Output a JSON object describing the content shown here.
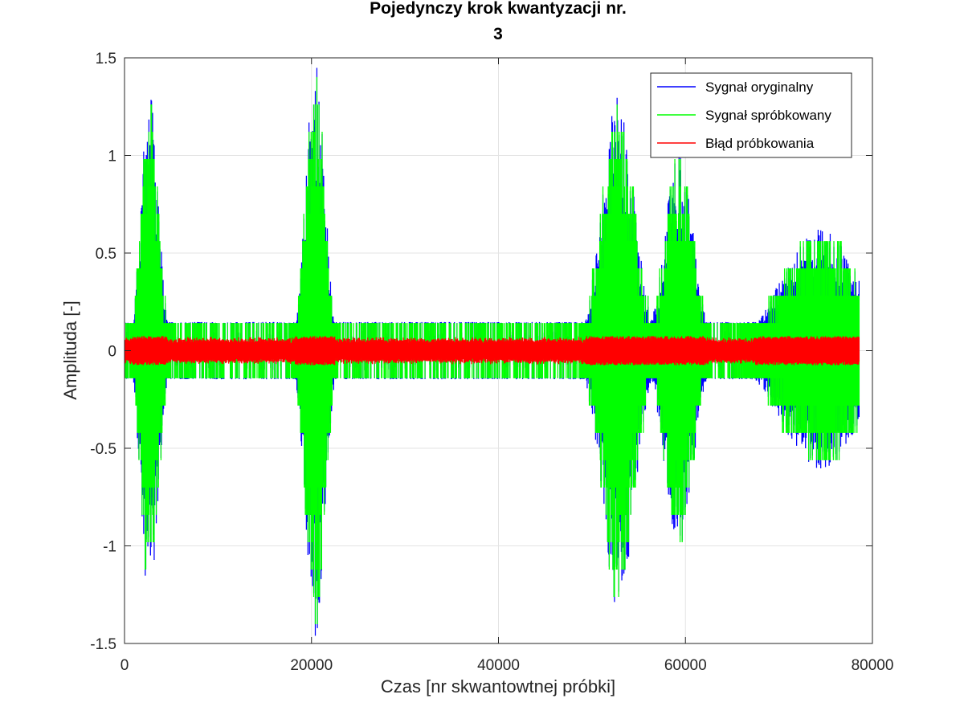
{
  "chart_data": {
    "type": "line",
    "title_lines": [
      "Pojedynczy krok kwantyzacji nr.",
      "3"
    ],
    "xlabel": "Czas [nr skwantowtnej próbki]",
    "ylabel": "Amplituda [-]",
    "xlim": [
      0,
      80000
    ],
    "ylim": [
      -1.5,
      1.5
    ],
    "x_ticks": [
      0,
      20000,
      40000,
      60000,
      80000
    ],
    "x_tick_labels": [
      "0",
      "20000",
      "40000",
      "60000",
      "80000"
    ],
    "y_ticks": [
      -1.5,
      -1,
      -0.5,
      0,
      0.5,
      1,
      1.5
    ],
    "y_tick_labels": [
      "-1.5",
      "-1",
      "-0.5",
      "0",
      "0.5",
      "1",
      "1.5"
    ],
    "grid": true,
    "legend_position": "top-right",
    "n_samples": 78600,
    "quantization_step": 0.14,
    "series": [
      {
        "name": "Sygnał oryginalny",
        "color": "#0000ff",
        "kind": "original"
      },
      {
        "name": "Sygnał spróbkowany",
        "color": "#00ff00",
        "kind": "quantized"
      },
      {
        "name": "Błąd próbkowania",
        "color": "#ff0000",
        "kind": "error"
      }
    ],
    "bursts": [
      {
        "center": 2700,
        "width": 900,
        "peak": 1.3
      },
      {
        "center": 20400,
        "width": 1000,
        "peak": 1.43
      },
      {
        "center": 52800,
        "width": 1700,
        "peak": 1.3
      },
      {
        "center": 59300,
        "width": 1500,
        "peak": 1.0
      },
      {
        "center": 74500,
        "width": 4200,
        "peak": 0.6
      }
    ]
  }
}
